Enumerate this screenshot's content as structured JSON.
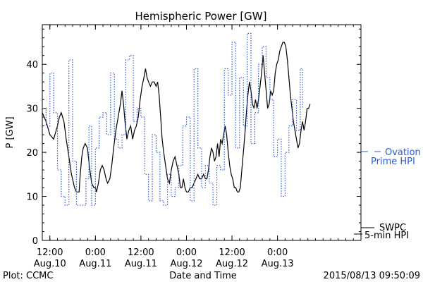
{
  "chart_data": {
    "type": "line",
    "title": "Hemispheric Power [GW]",
    "ylabel": "P [GW]",
    "xlabel": "Date and Time",
    "ylim": [
      0,
      49
    ],
    "yticks": [
      0,
      10,
      20,
      30,
      40
    ],
    "xlim_hours": [
      0,
      84
    ],
    "xticks": [
      {
        "t": 2,
        "top": "12:00",
        "bottom": "Aug.10"
      },
      {
        "t": 14,
        "top": "0:00",
        "bottom": "Aug.11"
      },
      {
        "t": 26,
        "top": "12:00",
        "bottom": "Aug.11"
      },
      {
        "t": 38,
        "top": "0:00",
        "bottom": "Aug.12"
      },
      {
        "t": 50,
        "top": "12:00",
        "bottom": "Aug.12"
      },
      {
        "t": 62,
        "top": "0:00",
        "bottom": "Aug.13"
      }
    ],
    "grid": false,
    "series": [
      {
        "name": "SWPC 5-min HPI",
        "legend_line1": "SWPC",
        "legend_line2": "5-min HPI",
        "color": "#000000",
        "style": "solid",
        "points": [
          [
            0,
            29
          ],
          [
            1,
            27
          ],
          [
            2,
            24
          ],
          [
            3,
            23
          ],
          [
            4,
            26
          ],
          [
            4.5,
            28
          ],
          [
            5,
            29
          ],
          [
            5.7,
            27
          ],
          [
            6.3,
            23
          ],
          [
            7,
            19
          ],
          [
            7.7,
            15
          ],
          [
            8.5,
            12
          ],
          [
            9,
            11
          ],
          [
            9.7,
            11
          ],
          [
            10,
            15
          ],
          [
            10.4,
            19
          ],
          [
            10.8,
            21
          ],
          [
            11.3,
            22
          ],
          [
            11.9,
            21
          ],
          [
            12.4,
            17
          ],
          [
            13,
            13
          ],
          [
            13.6,
            12
          ],
          [
            14,
            12
          ],
          [
            14.3,
            11
          ],
          [
            14.8,
            13
          ],
          [
            15.3,
            16
          ],
          [
            15.8,
            17
          ],
          [
            16.3,
            16
          ],
          [
            16.8,
            14
          ],
          [
            17.2,
            13
          ],
          [
            17.8,
            14
          ],
          [
            18.3,
            17
          ],
          [
            18.8,
            21
          ],
          [
            19.4,
            25
          ],
          [
            20,
            28
          ],
          [
            20.6,
            31
          ],
          [
            21,
            34
          ],
          [
            21.4,
            31
          ],
          [
            21.8,
            27
          ],
          [
            22.3,
            23
          ],
          [
            22.8,
            25
          ],
          [
            23.3,
            26
          ],
          [
            23.8,
            23
          ],
          [
            24.3,
            25
          ],
          [
            24.8,
            26
          ],
          [
            25.3,
            28
          ],
          [
            25.8,
            32
          ],
          [
            26.3,
            35
          ],
          [
            26.8,
            37
          ],
          [
            27.2,
            39
          ],
          [
            27.6,
            37
          ],
          [
            28,
            36
          ],
          [
            28.5,
            35
          ],
          [
            29,
            36
          ],
          [
            29.5,
            36
          ],
          [
            30,
            35
          ],
          [
            30.4,
            36
          ],
          [
            30.8,
            33
          ],
          [
            31.2,
            28
          ],
          [
            31.6,
            23
          ],
          [
            32,
            20
          ],
          [
            32.5,
            17
          ],
          [
            33,
            14
          ],
          [
            33.5,
            13
          ],
          [
            34,
            16
          ],
          [
            34.5,
            18
          ],
          [
            35,
            19
          ],
          [
            35.5,
            17
          ],
          [
            36,
            15
          ],
          [
            36.4,
            12
          ],
          [
            36.8,
            12
          ],
          [
            37.2,
            14
          ],
          [
            37.6,
            12
          ],
          [
            38,
            11
          ],
          [
            38.5,
            11
          ],
          [
            39,
            12
          ],
          [
            39.5,
            12
          ],
          [
            40,
            13
          ],
          [
            40.5,
            14
          ],
          [
            41,
            15
          ],
          [
            41.5,
            14
          ],
          [
            42,
            14
          ],
          [
            42.5,
            15
          ],
          [
            43,
            14
          ],
          [
            43.4,
            14
          ],
          [
            43.8,
            16
          ],
          [
            44.2,
            19
          ],
          [
            44.6,
            21
          ],
          [
            45,
            20
          ],
          [
            45.4,
            18
          ],
          [
            45.8,
            19
          ],
          [
            46.2,
            22
          ],
          [
            46.6,
            19
          ],
          [
            47,
            23
          ],
          [
            47.4,
            22
          ],
          [
            47.8,
            24
          ],
          [
            48.2,
            26
          ],
          [
            48.6,
            24
          ],
          [
            49,
            20
          ],
          [
            49.4,
            17
          ],
          [
            49.8,
            15
          ],
          [
            50.2,
            14
          ],
          [
            50.6,
            12
          ],
          [
            51,
            12
          ],
          [
            51.4,
            11
          ],
          [
            51.8,
            11
          ],
          [
            52.2,
            12
          ],
          [
            52.6,
            16
          ],
          [
            53,
            20
          ],
          [
            53.4,
            24
          ],
          [
            53.8,
            29
          ],
          [
            54.2,
            33
          ],
          [
            54.6,
            36
          ],
          [
            55,
            34
          ],
          [
            55.4,
            31
          ],
          [
            55.8,
            30
          ],
          [
            56.2,
            32
          ],
          [
            56.6,
            30
          ],
          [
            57,
            32
          ],
          [
            57.4,
            35
          ],
          [
            57.8,
            38
          ],
          [
            58.2,
            42
          ],
          [
            58.6,
            38
          ],
          [
            59,
            34
          ],
          [
            59.4,
            30
          ],
          [
            59.8,
            31
          ],
          [
            60.2,
            34
          ],
          [
            60.6,
            33
          ],
          [
            61,
            34
          ],
          [
            61.4,
            38
          ],
          [
            61.8,
            40
          ],
          [
            62.2,
            41
          ],
          [
            62.6,
            43
          ],
          [
            63,
            44
          ],
          [
            63.4,
            45
          ],
          [
            63.8,
            45
          ],
          [
            64.2,
            44
          ],
          [
            64.6,
            41
          ],
          [
            65,
            37
          ],
          [
            65.4,
            33
          ],
          [
            65.8,
            30
          ],
          [
            66.2,
            27
          ],
          [
            66.6,
            25
          ],
          [
            67,
            23
          ],
          [
            67.4,
            21
          ],
          [
            67.8,
            22
          ],
          [
            68.2,
            25
          ],
          [
            68.6,
            27
          ],
          [
            69,
            25
          ],
          [
            69.4,
            27
          ],
          [
            69.8,
            30
          ],
          [
            70.2,
            30
          ],
          [
            70.6,
            31
          ]
        ]
      },
      {
        "name": "Ovation Prime HPI",
        "legend_line1": "Ovation",
        "legend_line2": "Prime HPI",
        "color": "#2a5bd7",
        "style": "dotted-step",
        "points": [
          [
            0,
            30
          ],
          [
            1,
            26
          ],
          [
            2,
            38
          ],
          [
            3,
            29
          ],
          [
            4,
            16
          ],
          [
            5,
            10
          ],
          [
            6,
            8
          ],
          [
            7,
            41
          ],
          [
            8,
            18
          ],
          [
            9,
            8
          ],
          [
            10.5,
            8
          ],
          [
            11.5,
            14
          ],
          [
            12.3,
            26
          ],
          [
            13,
            8
          ],
          [
            14,
            21
          ],
          [
            15,
            28
          ],
          [
            16,
            29
          ],
          [
            17,
            24
          ],
          [
            18,
            38
          ],
          [
            19,
            23
          ],
          [
            20,
            21
          ],
          [
            21,
            24
          ],
          [
            22,
            41
          ],
          [
            23,
            42
          ],
          [
            24,
            27
          ],
          [
            25,
            30
          ],
          [
            26,
            28
          ],
          [
            27,
            15
          ],
          [
            28,
            9
          ],
          [
            29,
            24
          ],
          [
            30,
            20
          ],
          [
            31,
            9
          ],
          [
            32,
            8
          ],
          [
            33,
            15
          ],
          [
            34,
            10
          ],
          [
            35,
            12
          ],
          [
            36,
            17
          ],
          [
            37,
            26
          ],
          [
            38,
            28
          ],
          [
            39,
            9
          ],
          [
            40,
            39
          ],
          [
            41,
            21
          ],
          [
            42,
            12
          ],
          [
            43,
            17
          ],
          [
            44,
            13
          ],
          [
            45,
            8
          ],
          [
            46,
            17
          ],
          [
            47,
            16
          ],
          [
            48,
            39
          ],
          [
            49,
            33
          ],
          [
            50,
            45
          ],
          [
            51,
            21
          ],
          [
            52,
            37
          ],
          [
            53,
            26
          ],
          [
            54,
            47
          ],
          [
            55,
            22
          ],
          [
            56,
            29
          ],
          [
            57,
            40
          ],
          [
            58,
            44
          ],
          [
            59,
            37
          ],
          [
            60,
            32
          ],
          [
            61,
            19
          ],
          [
            62,
            23
          ],
          [
            63,
            10
          ],
          [
            64,
            20
          ],
          [
            65,
            26
          ],
          [
            66,
            32
          ],
          [
            67,
            25
          ],
          [
            68,
            39
          ],
          [
            68.6,
            30
          ]
        ]
      }
    ]
  },
  "footer": {
    "left": "Plot: CCMC",
    "right": "2015/08/13 09:50:09"
  }
}
